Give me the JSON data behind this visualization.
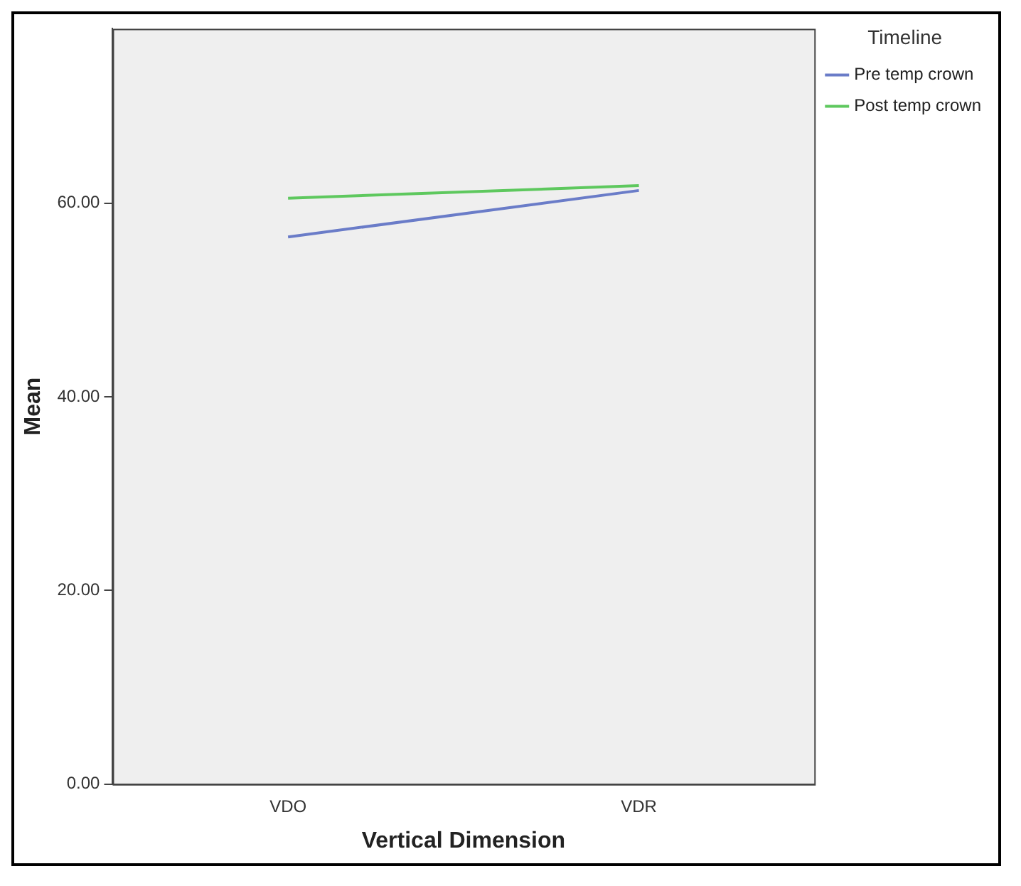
{
  "chart_data": {
    "type": "line",
    "xlabel": "Vertical Dimension",
    "ylabel": "Mean",
    "legend_title": "Timeline",
    "categories": [
      "VDO",
      "VDR"
    ],
    "series": [
      {
        "name": "Pre temp crown",
        "color": "#6a7cc8",
        "values": [
          56.5,
          61.3
        ]
      },
      {
        "name": "Post temp crown",
        "color": "#5ec85e",
        "values": [
          60.5,
          61.8
        ]
      }
    ],
    "ylim": [
      0,
      78
    ],
    "yticks": [
      {
        "value": 0,
        "label": "0.00"
      },
      {
        "value": 20,
        "label": "20.00"
      },
      {
        "value": 40,
        "label": "40.00"
      },
      {
        "value": 60,
        "label": "60.00"
      }
    ],
    "grid": false,
    "legend": "top right",
    "marker": "none"
  }
}
